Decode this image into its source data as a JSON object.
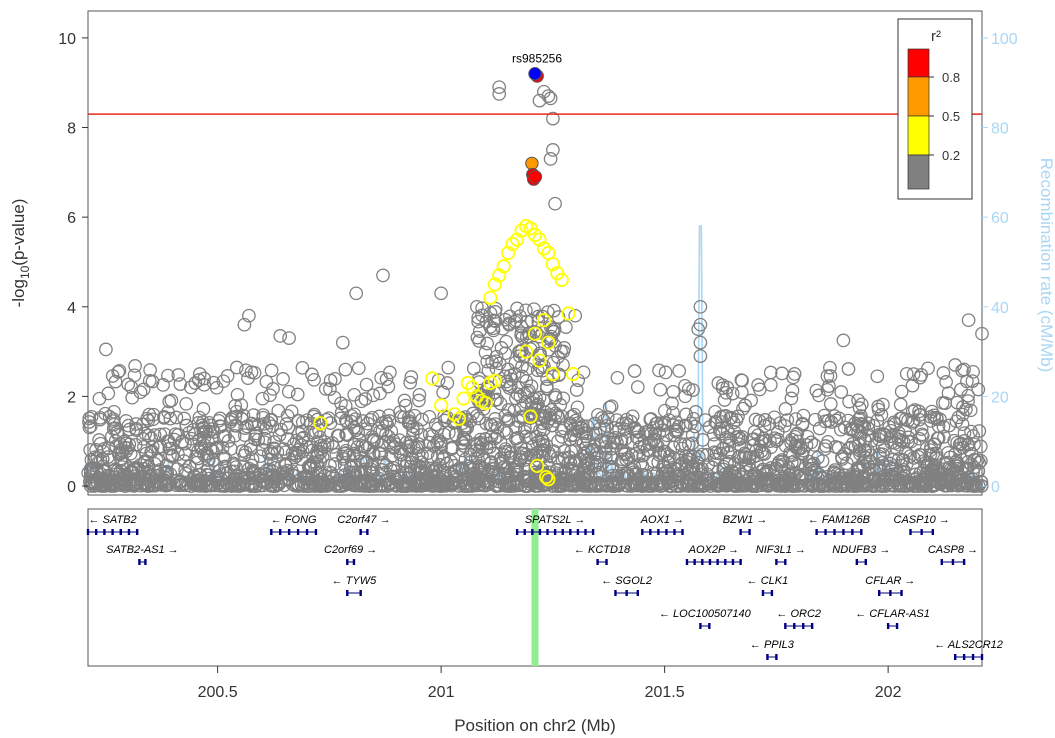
{
  "chart_data": {
    "type": "scatter",
    "top_panel": {
      "ylabel": "-log10(p-value)",
      "y2label": "Recombination rate (cM/Mb)",
      "xlim": [
        200.21,
        202.21
      ],
      "ylim": [
        -0.2,
        10.6
      ],
      "y_ticks": [
        "0",
        "2",
        "4",
        "6",
        "8",
        "10"
      ],
      "y2_ticks": [
        "0",
        "20",
        "40",
        "60",
        "80",
        "100"
      ],
      "y2lim": [
        -2,
        106
      ],
      "threshold_line": 8.3,
      "threshold_color": "#e8281e",
      "lead_snp_label": "rs985256",
      "legend": {
        "title": "r²",
        "tick_labels": [
          "0.8",
          "0.5",
          "0.2"
        ],
        "colors": [
          "#ff1a1a",
          "#ff9900",
          "#ffff00",
          "#808080"
        ]
      },
      "series": [
        {
          "name": "lead",
          "color": "#0000ff",
          "points": [
            [
              201.21,
              9.2
            ]
          ]
        },
        {
          "name": "0.8",
          "color": "#ff0000",
          "points": [
            [
              201.215,
              9.15
            ],
            [
              201.205,
              6.95
            ],
            [
              201.207,
              6.85
            ],
            [
              201.211,
              6.9
            ]
          ]
        },
        {
          "name": "0.5",
          "color": "#ff9900",
          "points": [
            [
              201.203,
              7.2
            ]
          ]
        },
        {
          "name": "0.2",
          "color": "#ffff00",
          "points": [
            [
              201.16,
              5.4
            ],
            [
              201.17,
              5.5
            ],
            [
              201.18,
              5.7
            ],
            [
              201.19,
              5.8
            ],
            [
              201.2,
              5.75
            ],
            [
              201.21,
              5.6
            ],
            [
              201.22,
              5.5
            ],
            [
              201.23,
              5.3
            ],
            [
              201.24,
              5.2
            ],
            [
              201.15,
              5.2
            ],
            [
              201.14,
              4.9
            ],
            [
              201.13,
              4.7
            ],
            [
              201.12,
              4.5
            ],
            [
              201.11,
              4.2
            ],
            [
              201.25,
              4.95
            ],
            [
              201.26,
              4.75
            ],
            [
              201.27,
              4.6
            ],
            [
              201.285,
              3.85
            ],
            [
              201.23,
              3.7
            ],
            [
              201.21,
              3.4
            ],
            [
              201.24,
              3.2
            ],
            [
              201.19,
              3.0
            ],
            [
              201.22,
              2.8
            ],
            [
              201.25,
              2.5
            ],
            [
              201.06,
              2.3
            ],
            [
              201.07,
              2.2
            ],
            [
              201.08,
              2.0
            ],
            [
              201.09,
              1.9
            ],
            [
              201.1,
              1.85
            ],
            [
              201.11,
              2.3
            ],
            [
              201.12,
              2.35
            ],
            [
              201.05,
              1.95
            ],
            [
              201.04,
              1.5
            ],
            [
              201.03,
              1.6
            ],
            [
              200.98,
              2.4
            ],
            [
              201.0,
              1.8
            ],
            [
              201.295,
              2.5
            ],
            [
              200.73,
              1.4
            ],
            [
              201.2,
              1.55
            ],
            [
              201.215,
              0.45
            ],
            [
              201.24,
              0.15
            ],
            [
              201.235,
              0.2
            ]
          ]
        }
      ],
      "gray_series": {
        "name": "<0.2",
        "color": "#808080",
        "highlights": [
          [
            201.13,
            8.9
          ],
          [
            201.13,
            8.75
          ],
          [
            201.23,
            8.8
          ],
          [
            201.22,
            8.6
          ],
          [
            201.24,
            8.7
          ],
          [
            201.245,
            8.65
          ],
          [
            201.25,
            8.2
          ],
          [
            201.25,
            7.5
          ],
          [
            201.245,
            7.3
          ],
          [
            201.255,
            6.3
          ],
          [
            200.87,
            4.7
          ],
          [
            200.81,
            4.3
          ],
          [
            201.0,
            4.3
          ],
          [
            201.08,
            4.0
          ],
          [
            201.3,
            3.8
          ],
          [
            201.58,
            4.0
          ],
          [
            201.58,
            3.6
          ],
          [
            201.575,
            3.5
          ],
          [
            201.58,
            3.2
          ],
          [
            201.58,
            2.9
          ],
          [
            200.57,
            3.8
          ],
          [
            200.56,
            3.6
          ],
          [
            200.64,
            3.35
          ],
          [
            200.66,
            3.3
          ],
          [
            200.78,
            3.2
          ],
          [
            201.9,
            3.25
          ],
          [
            202.18,
            3.7
          ],
          [
            202.21,
            3.4
          ],
          [
            200.25,
            3.05
          ],
          [
            200.46,
            2.5
          ],
          [
            200.45,
            2.3
          ],
          [
            200.47,
            2.4
          ],
          [
            200.44,
            2.2
          ],
          [
            201.62,
            2.3
          ],
          [
            201.63,
            2.25
          ],
          [
            201.64,
            2.2
          ],
          [
            202.15,
            2.7
          ],
          [
            202.17,
            2.6
          ],
          [
            202.19,
            2.55
          ]
        ]
      },
      "recomb_peaks": [
        [
          201.37,
          18
        ],
        [
          201.58,
          58
        ],
        [
          201.565,
          12
        ],
        [
          201.34,
          15
        ]
      ]
    },
    "bottom_panel": {
      "xlabel": "Position on chr2 (Mb)",
      "x_ticks": [
        "200.5",
        "201",
        "201.5",
        "202"
      ],
      "x_tick_values": [
        200.5,
        201,
        201.5,
        202
      ],
      "highlight_position": 201.21,
      "highlight_color": "#90ee90",
      "genes": [
        {
          "name": "SATB2",
          "start": 200.21,
          "end": 200.32,
          "row": 0,
          "strand": "-"
        },
        {
          "name": "SATB2-AS1",
          "start": 200.325,
          "end": 200.335,
          "row": 1,
          "strand": "+"
        },
        {
          "name": "FONG",
          "start": 200.62,
          "end": 200.72,
          "row": 0,
          "strand": "-"
        },
        {
          "name": "C2orf47",
          "start": 200.82,
          "end": 200.835,
          "row": 0,
          "strand": "+"
        },
        {
          "name": "C2orf69",
          "start": 200.79,
          "end": 200.805,
          "row": 1,
          "strand": "+"
        },
        {
          "name": "TYW5",
          "start": 200.79,
          "end": 200.82,
          "row": 2,
          "strand": "-"
        },
        {
          "name": "SPATS2L",
          "start": 201.17,
          "end": 201.34,
          "row": 0,
          "strand": "+"
        },
        {
          "name": "KCTD18",
          "start": 201.35,
          "end": 201.37,
          "row": 1,
          "strand": "-"
        },
        {
          "name": "SGOL2",
          "start": 201.39,
          "end": 201.44,
          "row": 2,
          "strand": "-"
        },
        {
          "name": "LOC100507140",
          "start": 201.58,
          "end": 201.6,
          "row": 3,
          "strand": "-"
        },
        {
          "name": "AOX1",
          "start": 201.45,
          "end": 201.54,
          "row": 0,
          "strand": "+"
        },
        {
          "name": "AOX2P",
          "start": 201.55,
          "end": 201.67,
          "row": 1,
          "strand": "+"
        },
        {
          "name": "BZW1",
          "start": 201.67,
          "end": 201.69,
          "row": 0,
          "strand": "+"
        },
        {
          "name": "NIF3L1",
          "start": 201.75,
          "end": 201.77,
          "row": 1,
          "strand": "+"
        },
        {
          "name": "CLK1",
          "start": 201.72,
          "end": 201.74,
          "row": 2,
          "strand": "-"
        },
        {
          "name": "ORC2",
          "start": 201.77,
          "end": 201.83,
          "row": 3,
          "strand": "-"
        },
        {
          "name": "PPIL3",
          "start": 201.73,
          "end": 201.75,
          "row": 4,
          "strand": "-"
        },
        {
          "name": "FAM126B",
          "start": 201.84,
          "end": 201.94,
          "row": 0,
          "strand": "-"
        },
        {
          "name": "NDUFB3",
          "start": 201.93,
          "end": 201.95,
          "row": 1,
          "strand": "+"
        },
        {
          "name": "CFLAR",
          "start": 201.98,
          "end": 202.03,
          "row": 2,
          "strand": "+"
        },
        {
          "name": "CFLAR-AS1",
          "start": 202.0,
          "end": 202.02,
          "row": 3,
          "strand": "-"
        },
        {
          "name": "CASP10",
          "start": 202.05,
          "end": 202.1,
          "row": 0,
          "strand": "+"
        },
        {
          "name": "CASP8",
          "start": 202.12,
          "end": 202.17,
          "row": 1,
          "strand": "+"
        },
        {
          "name": "ALS2CR12",
          "start": 202.15,
          "end": 202.21,
          "row": 4,
          "strand": "-"
        }
      ]
    }
  }
}
